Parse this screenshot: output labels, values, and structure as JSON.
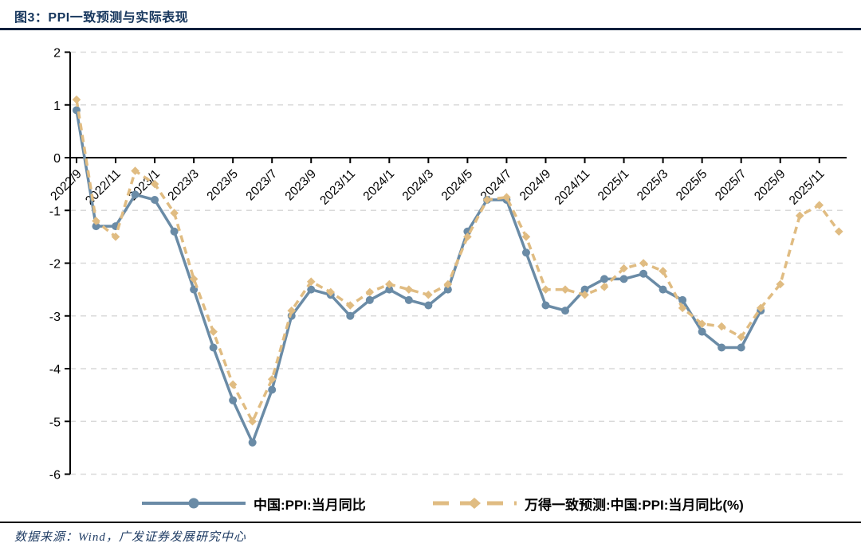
{
  "title": "图3：PPI一致预测与实际表现",
  "source": "数据来源：Wind，广发证券发展研究中心",
  "colors": {
    "title_text": "#16365D",
    "source_text": "#1F3C64",
    "actual_line": "#6A8BA6",
    "forecast_line": "#E0BC82",
    "gridline": "#D9D9D9",
    "axis": "#000000",
    "tick_label": "#000000"
  },
  "chart_data": {
    "type": "line",
    "x": [
      "2022/9",
      "2022/10",
      "2022/11",
      "2022/12",
      "2023/1",
      "2023/2",
      "2023/3",
      "2023/4",
      "2023/5",
      "2023/6",
      "2023/7",
      "2023/8",
      "2023/9",
      "2023/10",
      "2023/11",
      "2023/12",
      "2024/1",
      "2024/2",
      "2024/3",
      "2024/4",
      "2024/5",
      "2024/6",
      "2024/7",
      "2024/8",
      "2024/9",
      "2024/10",
      "2024/11",
      "2024/12",
      "2025/1",
      "2025/2",
      "2025/3",
      "2025/4",
      "2025/5",
      "2025/6",
      "2025/7",
      "2025/8",
      "2025/9",
      "2025/10",
      "2025/11",
      "2025/12"
    ],
    "x_tick_labels": [
      "2022/9",
      "2022/11",
      "2023/1",
      "2023/3",
      "2023/5",
      "2023/7",
      "2023/9",
      "2023/11",
      "2024/1",
      "2024/3",
      "2024/5",
      "2024/7",
      "2024/9",
      "2024/11",
      "2025/1",
      "2025/3",
      "2025/5",
      "2025/7",
      "2025/9",
      "2025/11"
    ],
    "series": [
      {
        "name": "中国:PPI:当月同比",
        "style": "solid",
        "marker": "circle",
        "color": "#6A8BA6",
        "values": [
          0.9,
          -1.3,
          -1.3,
          -0.7,
          -0.8,
          -1.4,
          -2.5,
          -3.6,
          -4.6,
          -5.4,
          -4.4,
          -3.0,
          -2.5,
          -2.6,
          -3.0,
          -2.7,
          -2.5,
          -2.7,
          -2.8,
          -2.5,
          -1.4,
          -0.8,
          -0.8,
          -1.8,
          -2.8,
          -2.9,
          -2.5,
          -2.3,
          -2.3,
          -2.2,
          -2.5,
          -2.7,
          -3.3,
          -3.6,
          -3.6,
          -2.9,
          null,
          null,
          null,
          null
        ]
      },
      {
        "name": "万得一致预测:中国:PPI:当月同比(%)",
        "style": "dashed",
        "marker": "diamond",
        "color": "#E0BC82",
        "values": [
          1.1,
          -1.2,
          -1.5,
          -0.25,
          -0.5,
          -1.05,
          -2.3,
          -3.3,
          -4.3,
          -5.0,
          -4.2,
          -2.9,
          -2.35,
          -2.55,
          -2.8,
          -2.55,
          -2.4,
          -2.5,
          -2.6,
          -2.4,
          -1.5,
          -0.8,
          -0.75,
          -1.5,
          -2.5,
          -2.5,
          -2.6,
          -2.45,
          -2.1,
          -2.0,
          -2.15,
          -2.85,
          -3.15,
          -3.2,
          -3.4,
          -2.85,
          -2.4,
          -1.1,
          -0.9,
          -1.4
        ]
      }
    ],
    "ylim": [
      -6,
      2
    ],
    "yticks": [
      2,
      1,
      0,
      -1,
      -2,
      -3,
      -4,
      -5,
      -6
    ],
    "grid": "horizontal-dashed",
    "legend_position": "bottom",
    "x_axis_position": "zero-line"
  }
}
